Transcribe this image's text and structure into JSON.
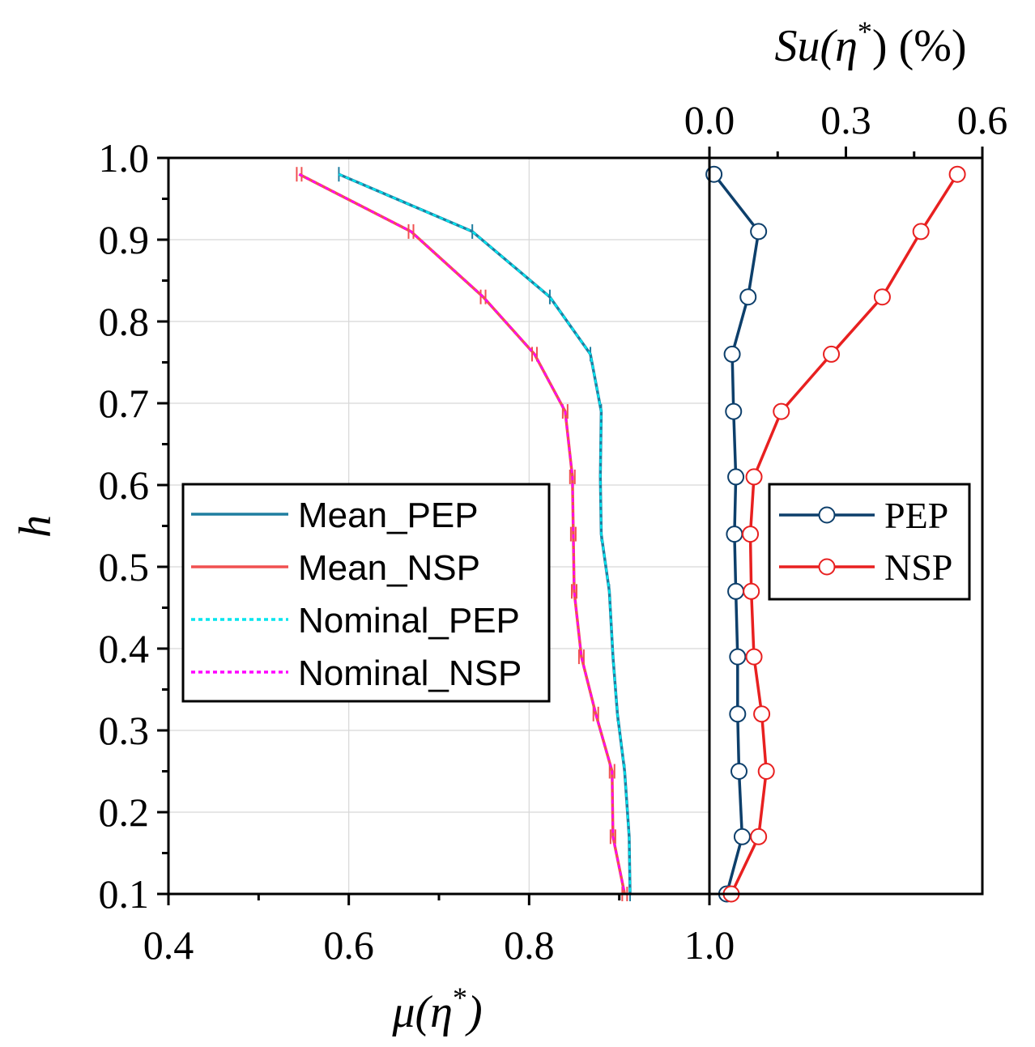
{
  "chart_data": {
    "type": "line",
    "y": {
      "label": "h",
      "lim": [
        0.1,
        1.0
      ],
      "ticks": [
        "0.1",
        "0.2",
        "0.3",
        "0.4",
        "0.5",
        "0.6",
        "0.7",
        "0.8",
        "0.9",
        "1.0"
      ]
    },
    "x_bottom": {
      "label_main": "μ(η",
      "label_sup": "*",
      "label_end": ")",
      "lim": [
        0.4,
        1.0
      ],
      "ticks": [
        "0.4",
        "0.6",
        "0.8",
        "1.0"
      ]
    },
    "x_top": {
      "label_main": "Su(η",
      "label_sup": "*",
      "label_end": ") (%)",
      "lim": [
        0.0,
        0.6
      ],
      "ticks": [
        "0.0",
        "0.3",
        "0.6"
      ]
    },
    "left_panel": {
      "series": [
        {
          "name": "Mean_PEP",
          "color": "#1f7ea0",
          "dash": "solid",
          "h": [
            0.98,
            0.91,
            0.83,
            0.76,
            0.69,
            0.61,
            0.54,
            0.47,
            0.39,
            0.32,
            0.25,
            0.17,
            0.1
          ],
          "mu": [
            0.589,
            0.737,
            0.823,
            0.868,
            0.88,
            0.879,
            0.88,
            0.889,
            0.893,
            0.898,
            0.906,
            0.911,
            0.912
          ]
        },
        {
          "name": "Mean_NSP",
          "color": "#f05050",
          "dash": "solid",
          "h": [
            0.98,
            0.91,
            0.83,
            0.76,
            0.69,
            0.61,
            0.54,
            0.47,
            0.39,
            0.32,
            0.25,
            0.17,
            0.1
          ],
          "mu": [
            0.545,
            0.669,
            0.749,
            0.806,
            0.84,
            0.848,
            0.849,
            0.85,
            0.858,
            0.874,
            0.892,
            0.893,
            0.906
          ]
        },
        {
          "name": "Nominal_PEP",
          "color": "#00e5ee",
          "dash": "dotted",
          "h": [
            0.98,
            0.91,
            0.83,
            0.76,
            0.69,
            0.61,
            0.54,
            0.47,
            0.39,
            0.32,
            0.25,
            0.17,
            0.1
          ],
          "mu": [
            0.589,
            0.737,
            0.823,
            0.868,
            0.88,
            0.879,
            0.88,
            0.889,
            0.893,
            0.898,
            0.906,
            0.911,
            0.912
          ]
        },
        {
          "name": "Nominal_NSP",
          "color": "#ff00ff",
          "dash": "dotted",
          "h": [
            0.98,
            0.91,
            0.83,
            0.76,
            0.69,
            0.61,
            0.54,
            0.47,
            0.39,
            0.32,
            0.25,
            0.17,
            0.1
          ],
          "mu": [
            0.545,
            0.669,
            0.749,
            0.806,
            0.84,
            0.848,
            0.849,
            0.85,
            0.858,
            0.874,
            0.892,
            0.893,
            0.906
          ]
        }
      ],
      "legend": [
        "Mean_PEP",
        "Mean_NSP",
        "Nominal_PEP",
        "Nominal_NSP"
      ]
    },
    "right_panel": {
      "series": [
        {
          "name": "PEP",
          "color": "#0d3f6b",
          "marker": "open-circle",
          "h": [
            0.98,
            0.91,
            0.83,
            0.76,
            0.69,
            0.61,
            0.54,
            0.47,
            0.39,
            0.32,
            0.25,
            0.17,
            0.1
          ],
          "su": [
            0.01,
            0.108,
            0.085,
            0.05,
            0.053,
            0.058,
            0.055,
            0.058,
            0.062,
            0.062,
            0.065,
            0.072,
            0.038
          ]
        },
        {
          "name": "NSP",
          "color": "#e82020",
          "marker": "open-circle",
          "h": [
            0.98,
            0.91,
            0.83,
            0.76,
            0.69,
            0.61,
            0.54,
            0.47,
            0.39,
            0.32,
            0.25,
            0.17,
            0.1
          ],
          "su": [
            0.545,
            0.465,
            0.38,
            0.268,
            0.158,
            0.098,
            0.09,
            0.092,
            0.098,
            0.115,
            0.125,
            0.108,
            0.048
          ]
        }
      ],
      "legend": [
        "PEP",
        "NSP"
      ]
    }
  }
}
